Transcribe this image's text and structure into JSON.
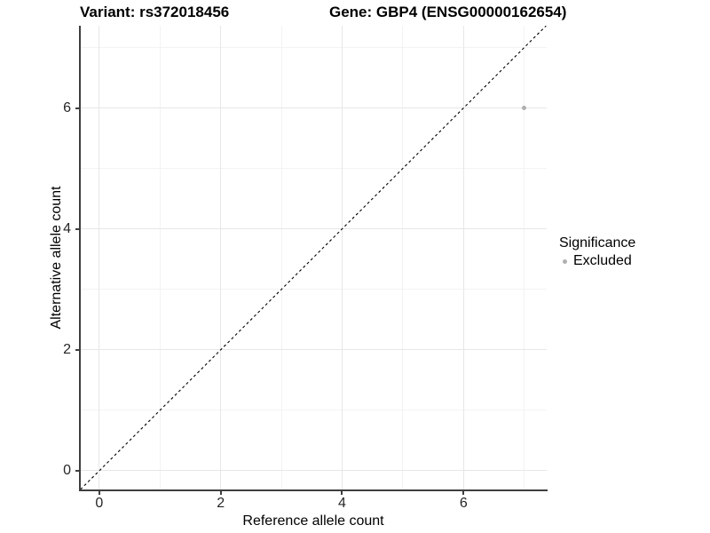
{
  "title": {
    "variant": "Variant: rs372018456",
    "gene": "Gene: GBP4 (ENSG00000162654)"
  },
  "axes": {
    "x": {
      "label": "Reference allele count",
      "ticks": [
        "0",
        "2",
        "4",
        "6"
      ]
    },
    "y": {
      "label": "Alternative allele count",
      "ticks": [
        "0",
        "2",
        "4",
        "6"
      ]
    }
  },
  "legend": {
    "title": "Significance",
    "items": [
      {
        "label": "Excluded",
        "color": "#b0b0b0"
      }
    ]
  },
  "colors": {
    "point": "#b0b0b0",
    "grid_major": "#e7e7e7",
    "grid_minor": "#f3f3f3",
    "axis_line": "#3f3f3f",
    "reference_line": "#000000"
  },
  "chart_data": {
    "type": "scatter",
    "title": "Variant: rs372018456 | Gene: GBP4 (ENSG00000162654)",
    "xlabel": "Reference allele count",
    "ylabel": "Alternative allele count",
    "xlim": [
      -0.32,
      7.37
    ],
    "ylim": [
      -0.31,
      7.36
    ],
    "x_major_ticks": [
      0,
      2,
      4,
      6
    ],
    "y_major_ticks": [
      0,
      2,
      4,
      6
    ],
    "x_minor_ticks": [
      1,
      3,
      5,
      7
    ],
    "y_minor_ticks": [
      1,
      3,
      5,
      7
    ],
    "grid": true,
    "legend_position": "right",
    "series": [
      {
        "name": "Excluded",
        "color": "#b0b0b0",
        "points": [
          {
            "x": 7,
            "y": 6
          }
        ]
      }
    ],
    "reference_line": {
      "type": "identity y=x",
      "style": "dashed",
      "color": "#000000"
    }
  }
}
